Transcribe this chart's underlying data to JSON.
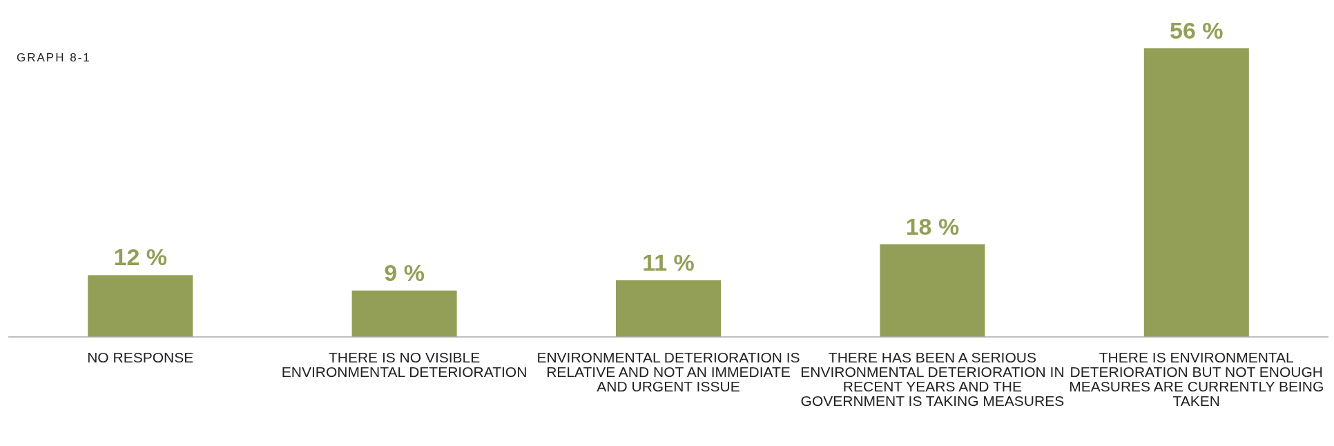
{
  "chart_data": {
    "type": "bar",
    "annotations": [
      "GRAPH 8-1"
    ],
    "categories": [
      "NO RESPONSE",
      "THERE IS NO VISIBLE ENVIRONMENTAL DETERIORATION",
      "ENVIRONMENTAL DETERIORATION IS RELATIVE AND NOT AN IMMEDIATE AND URGENT ISSUE",
      "THERE HAS BEEN A SERIOUS ENVIRONMENTAL DETERIORATION IN RECENT YEARS AND THE GOVERNMENT IS TAKING MEASURES",
      "THERE IS ENVIRONMENTAL DETERIORATION BUT NOT ENOUGH MEASURES ARE CURRENTLY BEING TAKEN"
    ],
    "values": [
      12,
      9,
      11,
      18,
      56
    ],
    "value_labels": [
      "12 %",
      "9 %",
      "11 %",
      "18 %",
      "56 %"
    ],
    "color": "#939f57",
    "grid": false,
    "legend": false
  }
}
